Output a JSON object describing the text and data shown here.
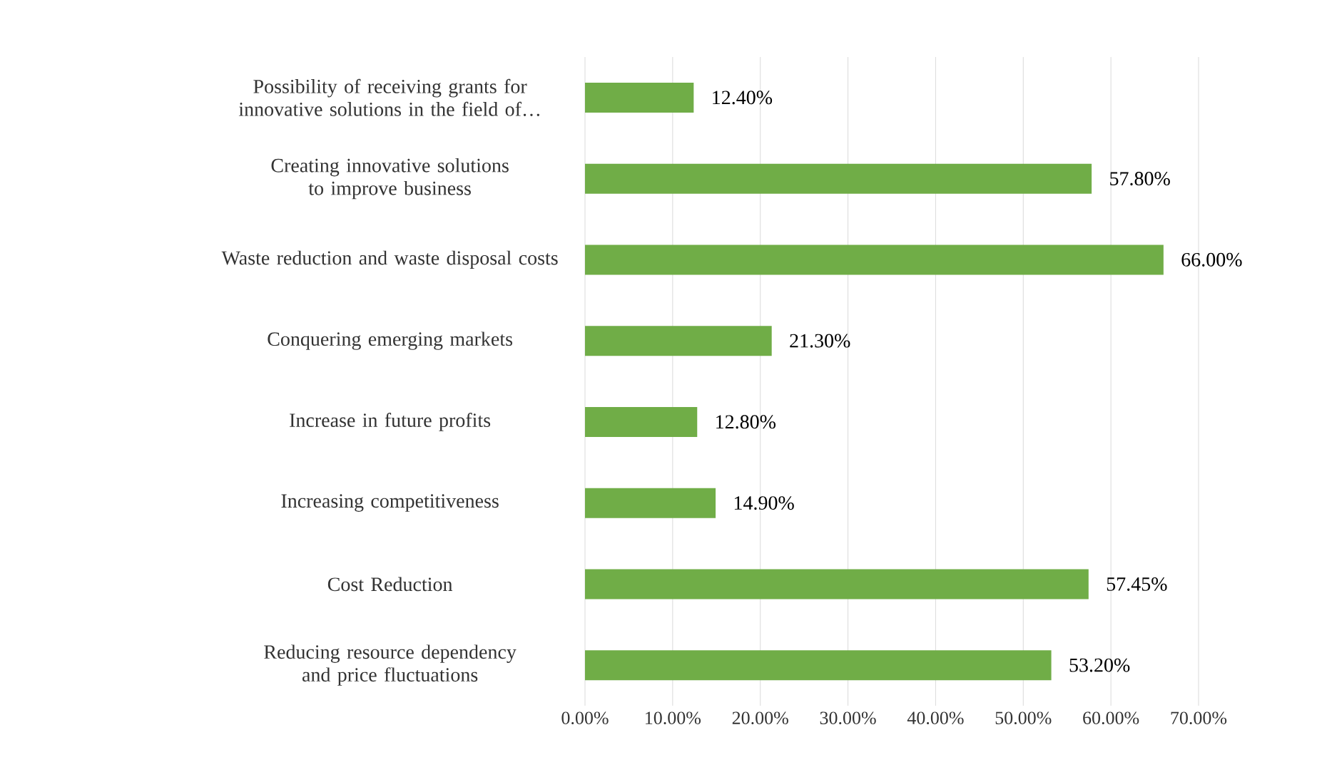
{
  "chart_data": {
    "type": "bar",
    "orientation": "horizontal",
    "categories": [
      "Possibility of receiving grants for innovative solutions in the field of…",
      "Creating innovative solutions to improve business",
      "Waste reduction and waste disposal costs",
      "Conquering emerging markets",
      "Increase in future profits",
      "Increasing competitiveness",
      "Cost Reduction",
      "Reducing resource dependency and price fluctuations"
    ],
    "values": [
      12.4,
      57.8,
      66.0,
      21.3,
      12.8,
      14.9,
      57.45,
      53.2
    ],
    "value_labels": [
      "12.40%",
      "57.80%",
      "66.00%",
      "21.30%",
      "12.80%",
      "14.90%",
      "57.45%",
      "53.20%"
    ],
    "color": "#70ad47",
    "xlim": [
      0,
      70
    ],
    "xticks": [
      {
        "value": 0,
        "label": "0.00%"
      },
      {
        "value": 10,
        "label": "10.00%"
      },
      {
        "value": 20,
        "label": "20.00%"
      },
      {
        "value": 30,
        "label": "30.00%"
      },
      {
        "value": 40,
        "label": "40.00%"
      },
      {
        "value": 50,
        "label": "50.00%"
      },
      {
        "value": 60,
        "label": "60.00%"
      },
      {
        "value": 70,
        "label": "70.00%"
      }
    ],
    "grid": "x"
  }
}
